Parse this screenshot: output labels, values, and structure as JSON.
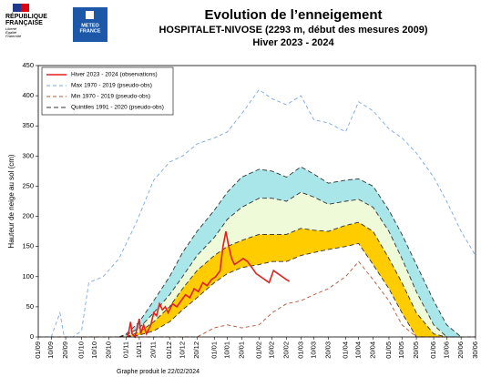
{
  "header": {
    "republique": [
      "RÉPUBLIQUE",
      "FRANÇAISE"
    ],
    "devise": [
      "Liberté",
      "Égalité",
      "Fraternité"
    ],
    "meteo": [
      "METEO",
      "FRANCE"
    ]
  },
  "chart_data": {
    "type": "line",
    "title": "Evolution de l’enneigement",
    "subtitle": "HOSPITALET-NIVOSE (2293 m, début des mesures 2009)",
    "subtitle2": "Hiver 2023 - 2024",
    "ylabel": "Hauteur de neige au sol (cm)",
    "footnote": "Graphe produit le 22/02/2024",
    "xlim": [
      0,
      303
    ],
    "ylim": [
      0,
      450
    ],
    "yticks": [
      0,
      50,
      100,
      150,
      200,
      250,
      300,
      350,
      400,
      450
    ],
    "xticks": [
      {
        "value": 0,
        "label": "01/09"
      },
      {
        "value": 9,
        "label": "10/09"
      },
      {
        "value": 19,
        "label": "20/09"
      },
      {
        "value": 30,
        "label": "01/10"
      },
      {
        "value": 39,
        "label": "10/10"
      },
      {
        "value": 49,
        "label": "20/10"
      },
      {
        "value": 61,
        "label": "01/11"
      },
      {
        "value": 70,
        "label": "10/11"
      },
      {
        "value": 80,
        "label": "20/11"
      },
      {
        "value": 91,
        "label": "01/12"
      },
      {
        "value": 100,
        "label": "10/12"
      },
      {
        "value": 110,
        "label": "20/12"
      },
      {
        "value": 122,
        "label": "01/01"
      },
      {
        "value": 131,
        "label": "10/01"
      },
      {
        "value": 141,
        "label": "20/01"
      },
      {
        "value": 153,
        "label": "01/02"
      },
      {
        "value": 162,
        "label": "10/02"
      },
      {
        "value": 172,
        "label": "20/02"
      },
      {
        "value": 182,
        "label": "01/03"
      },
      {
        "value": 191,
        "label": "10/03"
      },
      {
        "value": 201,
        "label": "20/03"
      },
      {
        "value": 213,
        "label": "01/04"
      },
      {
        "value": 222,
        "label": "10/04"
      },
      {
        "value": 232,
        "label": "20/04"
      },
      {
        "value": 243,
        "label": "01/05"
      },
      {
        "value": 252,
        "label": "10/05"
      },
      {
        "value": 262,
        "label": "20/05"
      },
      {
        "value": 274,
        "label": "01/06"
      },
      {
        "value": 283,
        "label": "10/06"
      },
      {
        "value": 293,
        "label": "20/06"
      },
      {
        "value": 303,
        "label": "30/06"
      }
    ],
    "legend": "upper left",
    "series": [
      {
        "name": "Hiver 2023 - 2024 (observations)",
        "color": "#e02020",
        "dash": "none",
        "width": 1.6,
        "x": [
          62,
          64,
          65,
          67,
          70,
          71,
          73,
          75,
          78,
          80,
          82,
          84,
          86,
          88,
          90,
          93,
          96,
          99,
          102,
          105,
          108,
          111,
          114,
          117,
          120,
          123,
          126,
          128,
          130,
          132,
          134,
          136,
          139,
          142,
          145,
          148,
          151,
          154,
          157,
          160,
          163,
          166,
          169,
          172,
          174
        ],
        "values": [
          0,
          25,
          5,
          0,
          30,
          5,
          20,
          5,
          20,
          40,
          35,
          55,
          45,
          50,
          40,
          55,
          50,
          60,
          70,
          65,
          80,
          75,
          90,
          85,
          95,
          100,
          110,
          150,
          175,
          150,
          130,
          120,
          125,
          130,
          125,
          115,
          105,
          100,
          95,
          90,
          110,
          105,
          100,
          95,
          92
        ]
      },
      {
        "name": "Max 1970 - 2019 (pseudo-obs)",
        "color": "#7aa8dd",
        "dash": "4 3",
        "width": 0.9,
        "x": [
          0,
          9,
          12,
          15,
          18,
          24,
          30,
          35,
          45,
          56,
          68,
          80,
          91,
          100,
          110,
          122,
          131,
          141,
          153,
          162,
          172,
          182,
          191,
          201,
          213,
          222,
          232,
          243,
          252,
          262,
          274,
          283,
          293,
          303
        ],
        "values": [
          0,
          0,
          20,
          40,
          0,
          0,
          10,
          90,
          100,
          130,
          190,
          260,
          290,
          300,
          320,
          330,
          340,
          370,
          410,
          395,
          385,
          400,
          360,
          355,
          340,
          390,
          375,
          345,
          330,
          305,
          265,
          225,
          175,
          135
        ]
      },
      {
        "name": "Min 1970 - 2019 (pseudo-obs)",
        "color": "#b5553a",
        "dash": "4 3",
        "width": 0.9,
        "x": [
          0,
          110,
          122,
          131,
          141,
          153,
          162,
          172,
          182,
          191,
          201,
          213,
          222,
          232,
          243,
          252,
          262,
          303
        ],
        "values": [
          0,
          0,
          15,
          20,
          15,
          20,
          40,
          55,
          60,
          70,
          80,
          100,
          125,
          95,
          60,
          20,
          0,
          0
        ]
      }
    ],
    "quintiles": {
      "name": "Quintiles 1991 - 2020 (pseudo-obs)",
      "color": "#333333",
      "dash": "5 3",
      "fills": [
        "#ffcc00",
        "#eefad8",
        "#a8e6ea"
      ],
      "x": [
        56,
        61,
        70,
        80,
        91,
        100,
        110,
        122,
        131,
        141,
        153,
        162,
        172,
        182,
        191,
        201,
        213,
        222,
        232,
        243,
        252,
        262,
        274,
        283,
        293
      ],
      "bounds": [
        [
          0,
          0,
          3,
          10,
          25,
          45,
          65,
          90,
          105,
          115,
          120,
          125,
          125,
          135,
          140,
          145,
          150,
          155,
          120,
          80,
          40,
          0,
          0,
          0,
          0
        ],
        [
          0,
          0,
          8,
          25,
          50,
          80,
          110,
          135,
          150,
          160,
          170,
          170,
          170,
          180,
          177,
          175,
          185,
          190,
          175,
          130,
          90,
          40,
          5,
          0,
          0
        ],
        [
          0,
          3,
          15,
          40,
          70,
          100,
          135,
          165,
          195,
          215,
          230,
          230,
          225,
          240,
          232,
          220,
          225,
          228,
          215,
          175,
          130,
          75,
          20,
          0,
          0
        ],
        [
          0,
          5,
          25,
          60,
          100,
          140,
          175,
          210,
          240,
          265,
          278,
          275,
          265,
          282,
          270,
          255,
          260,
          262,
          250,
          210,
          170,
          120,
          60,
          20,
          0
        ]
      ]
    }
  }
}
